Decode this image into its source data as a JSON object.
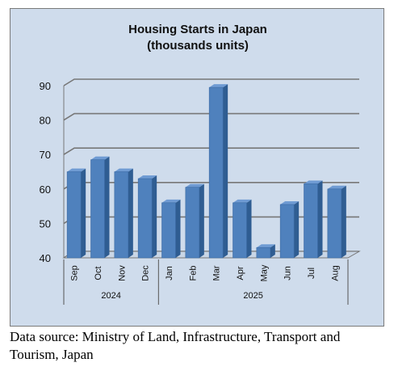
{
  "chart_data": {
    "type": "bar",
    "title": "Housing Starts in Japan",
    "subtitle": "(thousands units)",
    "categories": [
      "Sep",
      "Oct",
      "Nov",
      "Dec",
      "Jan",
      "Feb",
      "Mar",
      "Apr",
      "May",
      "Jun",
      "Jul",
      "Aug"
    ],
    "groups": [
      {
        "label": "2024",
        "count": 4
      },
      {
        "label": "2025",
        "count": 8
      }
    ],
    "values": [
      65,
      68.5,
      65,
      63,
      56,
      60.5,
      89.5,
      56,
      43,
      55.5,
      61.5,
      60
    ],
    "ylim": [
      40,
      90
    ],
    "yticks": [
      40,
      50,
      60,
      70,
      80,
      90
    ],
    "grid": true,
    "bar_color": "#4f81bd"
  },
  "footer": {
    "source_line1": "Data source: Ministry of Land, Infrastructure, Transport and",
    "source_line2": "Tourism, Japan"
  }
}
